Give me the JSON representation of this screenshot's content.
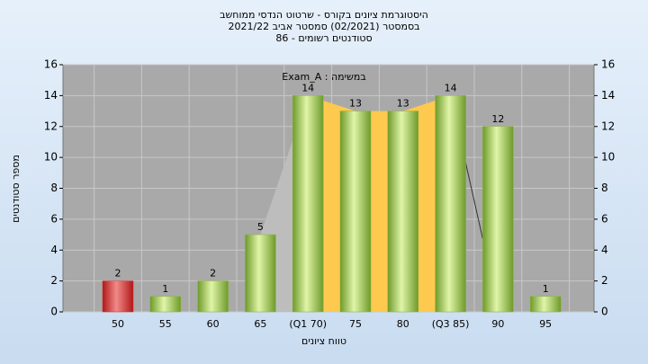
{
  "chart_data": {
    "type": "bar",
    "title_lines": [
      "היסטוגרמת ציונים בקורס - שרטוט הנדסי ממוחשב",
      "בסמסטר  (02/2021)  סמסטר אביב 2021/22",
      "סטודנטים רשומים - 86"
    ],
    "annotation": "במשימה : Exam_A",
    "x_label": "טווח ציונים",
    "y_label": "מספר סטודנטים",
    "categories": [
      "50",
      "55",
      "60",
      "65",
      "(Q1 70)",
      "75",
      "80",
      "(Q3 85)",
      "90",
      "95"
    ],
    "values": [
      2,
      1,
      2,
      5,
      14,
      13,
      13,
      14,
      12,
      1
    ],
    "colors": [
      "#d42a2a",
      "#8cb43c",
      "#8cb43c",
      "#8cb43c",
      "#8cb43c",
      "#8cb43c",
      "#8cb43c",
      "#8cb43c",
      "#8cb43c",
      "#8cb43c"
    ],
    "ylim": [
      0,
      16
    ],
    "yticks": [
      0,
      2,
      4,
      6,
      8,
      10,
      12,
      14,
      16
    ],
    "y2lim": [
      0,
      16
    ],
    "y2ticks": [
      0,
      2,
      4,
      6,
      8,
      10,
      12,
      14,
      16
    ],
    "grid": true
  }
}
